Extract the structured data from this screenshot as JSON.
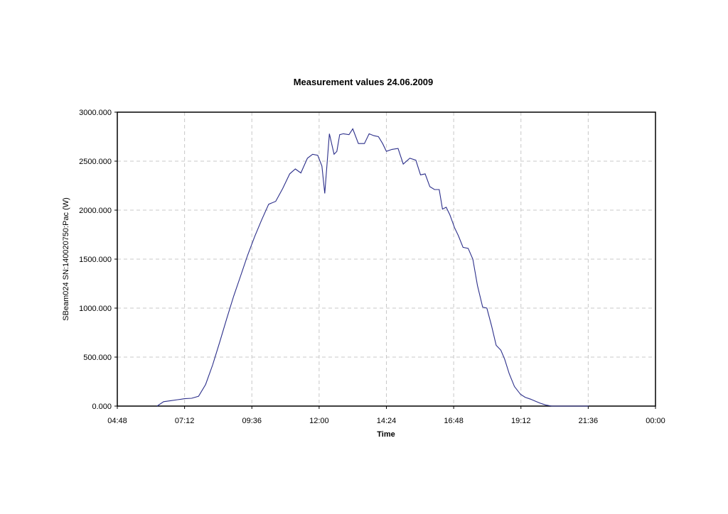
{
  "chart_data": {
    "type": "line",
    "title": "Measurement values 24.06.2009",
    "xlabel": "Time",
    "ylabel": "SBeam024 SN:140020750:Pac (W)",
    "xlim": [
      "04:48",
      "00:00"
    ],
    "ylim": [
      0,
      3000
    ],
    "grid": true,
    "x_ticks": [
      "04:48",
      "07:12",
      "09:36",
      "12:00",
      "14:24",
      "16:48",
      "19:12",
      "21:36",
      "00:00"
    ],
    "y_ticks": [
      "0.000",
      "500.000",
      "1000.000",
      "1500.000",
      "2000.000",
      "2500.000",
      "3000.000"
    ],
    "line_color": "#2b2e8a",
    "series": [
      {
        "x": [
          "06:13",
          "06:27",
          "06:42",
          "06:57",
          "07:12",
          "07:27",
          "07:42",
          "07:57",
          "08:12",
          "08:27",
          "08:42",
          "08:57",
          "09:12",
          "09:27",
          "09:42",
          "09:57",
          "10:12",
          "10:27",
          "10:42",
          "10:57",
          "11:09",
          "11:21",
          "11:35",
          "11:46",
          "11:57",
          "12:06",
          "12:12",
          "12:22",
          "12:32",
          "12:38",
          "12:44",
          "12:52",
          "13:04",
          "13:12",
          "13:24",
          "13:37",
          "13:47",
          "13:57",
          "14:07",
          "14:16",
          "14:24",
          "14:36",
          "14:49",
          "15:00",
          "15:14",
          "15:27",
          "15:37",
          "15:47",
          "15:57",
          "16:07",
          "16:17",
          "16:24",
          "16:32",
          "16:40",
          "16:50",
          "16:58",
          "17:08",
          "17:19",
          "17:29",
          "17:39",
          "17:50",
          "17:59",
          "18:09",
          "18:19",
          "18:29",
          "18:37",
          "18:47",
          "18:58",
          "19:11",
          "19:21",
          "19:33",
          "19:43",
          "19:53",
          "20:06",
          "20:18",
          "20:28",
          "20:42",
          "20:55",
          "21:09",
          "21:21",
          "21:31",
          "21:37"
        ],
        "y": [
          0,
          45,
          55,
          65,
          75,
          80,
          100,
          220,
          420,
          650,
          890,
          1120,
          1330,
          1540,
          1730,
          1900,
          2060,
          2090,
          2220,
          2370,
          2420,
          2380,
          2530,
          2570,
          2560,
          2450,
          2170,
          2780,
          2570,
          2600,
          2770,
          2780,
          2770,
          2830,
          2680,
          2680,
          2780,
          2760,
          2750,
          2680,
          2600,
          2620,
          2630,
          2470,
          2530,
          2510,
          2360,
          2370,
          2240,
          2210,
          2210,
          2010,
          2030,
          1950,
          1820,
          1740,
          1620,
          1610,
          1500,
          1230,
          1010,
          1000,
          820,
          620,
          570,
          480,
          330,
          200,
          120,
          90,
          70,
          50,
          30,
          10,
          0,
          0,
          0,
          0,
          0,
          0,
          0,
          0
        ]
      }
    ]
  }
}
